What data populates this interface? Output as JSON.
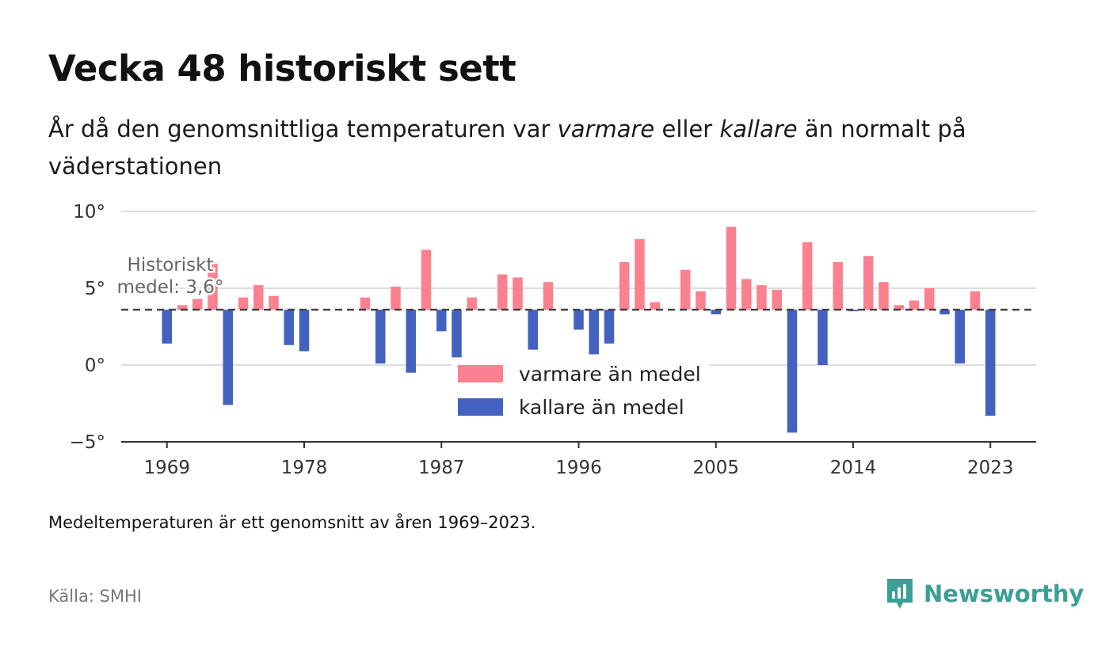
{
  "title": "Vecka 48 historiskt sett",
  "subtitle": {
    "part1": "År då den genomsnittliga temperaturen var ",
    "warm_word": "varmare",
    "part2": " eller ",
    "cold_word": "kallare",
    "part3": " än normalt på väderstationen"
  },
  "note": "Medeltemperaturen är ett genomsnitt av åren 1969–2023.",
  "source": "Källa: SMHI",
  "brand": {
    "name": "Newsworthy",
    "icon": "newsworthy-logo-icon",
    "color": "#3a9f94"
  },
  "chart_data": {
    "type": "bar",
    "x_ticks": [
      "1969",
      "1978",
      "1987",
      "1996",
      "2005",
      "2014",
      "2023"
    ],
    "y_ticks": [
      "10°",
      "5°",
      "0°",
      "−5°"
    ],
    "ylim": [
      -5,
      10
    ],
    "xlim": [
      1966,
      2026
    ],
    "baseline": 3.6,
    "baseline_label_lines": [
      "Historiskt",
      "medel: 3,6°"
    ],
    "grid": true,
    "legend_position": "center",
    "series": [
      {
        "name": "varmare än medel",
        "color": "#fb8190"
      },
      {
        "name": "kallare än medel",
        "color": "#4362bf"
      }
    ],
    "years": [
      1969,
      1970,
      1971,
      1972,
      1973,
      1974,
      1975,
      1976,
      1977,
      1978,
      1979,
      1980,
      1981,
      1982,
      1983,
      1984,
      1985,
      1986,
      1987,
      1988,
      1989,
      1990,
      1991,
      1992,
      1993,
      1994,
      1995,
      1996,
      1997,
      1998,
      1999,
      2000,
      2001,
      2002,
      2003,
      2004,
      2005,
      2006,
      2007,
      2008,
      2009,
      2010,
      2011,
      2012,
      2013,
      2014,
      2015,
      2016,
      2017,
      2018,
      2019,
      2020,
      2021,
      2022,
      2023
    ],
    "values": [
      1.4,
      3.9,
      4.3,
      6.6,
      -2.6,
      4.4,
      5.2,
      4.5,
      1.3,
      0.9,
      null,
      null,
      null,
      4.4,
      0.1,
      5.1,
      -0.5,
      7.5,
      2.2,
      0.5,
      4.4,
      null,
      5.9,
      5.7,
      1.0,
      5.4,
      null,
      2.3,
      0.7,
      1.4,
      6.7,
      8.2,
      4.1,
      null,
      6.2,
      4.8,
      3.3,
      9.0,
      5.6,
      5.2,
      4.9,
      -4.4,
      8.0,
      0.0,
      6.7,
      3.5,
      7.1,
      5.4,
      3.9,
      4.2,
      5.0,
      3.3,
      0.1,
      4.8,
      -3.3
    ]
  }
}
